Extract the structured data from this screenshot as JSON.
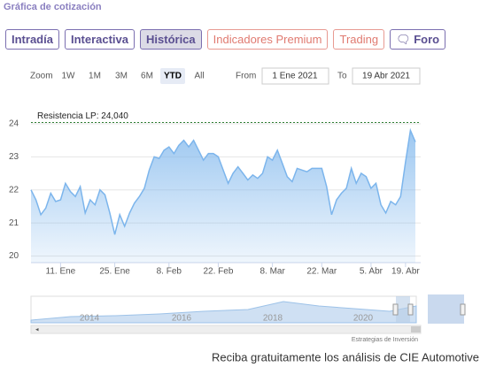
{
  "header": {
    "title": "Gráfica de cotización"
  },
  "tabs": [
    "Intradía",
    "Interactiva",
    "Histórica",
    "Indicadores Premium",
    "Trading",
    "Foro"
  ],
  "range_selector": {
    "label": "Zoom",
    "buttons": [
      "1W",
      "1M",
      "3M",
      "6M",
      "YTD",
      "All"
    ],
    "from_label": "From",
    "from": "1 Ene 2021",
    "to_label": "To",
    "to": "19 Abr 2021"
  },
  "navigator": {
    "labels": [
      "2014",
      "2016",
      "2018",
      "2020"
    ]
  },
  "credits": "Estrategias de Inversión",
  "footer": "Reciba gratuitamente los análisis de CIE Automotive",
  "chart_data": {
    "type": "area",
    "color": "#7cb5ec",
    "categories": [
      null,
      null,
      null,
      null,
      null,
      null,
      "11. Ene",
      null,
      null,
      null,
      null,
      null,
      null,
      null,
      null,
      null,
      null,
      "25. Ene",
      null,
      null,
      null,
      null,
      null,
      null,
      null,
      null,
      null,
      null,
      "8. Feb",
      null,
      null,
      null,
      null,
      null,
      null,
      null,
      null,
      null,
      "22. Feb",
      null,
      null,
      null,
      null,
      null,
      null,
      null,
      null,
      null,
      null,
      "8. Mar",
      null,
      null,
      null,
      null,
      null,
      null,
      null,
      null,
      null,
      "22. Mar",
      null,
      null,
      null,
      null,
      null,
      null,
      null,
      null,
      null,
      "5. Abr",
      null,
      null,
      null,
      null,
      null,
      null,
      "19. Abr",
      null,
      null
    ],
    "values": [
      22.0,
      21.7,
      21.25,
      21.45,
      21.9,
      21.65,
      21.7,
      22.2,
      21.95,
      21.8,
      22.1,
      21.3,
      21.7,
      21.55,
      22.0,
      21.85,
      21.3,
      20.65,
      21.25,
      20.9,
      21.3,
      21.6,
      21.8,
      22.05,
      22.6,
      23.0,
      22.95,
      23.2,
      23.3,
      23.1,
      23.35,
      23.5,
      23.3,
      23.5,
      23.2,
      22.9,
      23.1,
      23.1,
      23.0,
      22.6,
      22.2,
      22.5,
      22.7,
      22.5,
      22.3,
      22.45,
      22.35,
      22.5,
      23.0,
      22.9,
      23.2,
      22.8,
      22.4,
      22.25,
      22.65,
      22.6,
      22.55,
      22.65,
      22.65,
      22.65,
      22.1,
      21.25,
      21.7,
      21.9,
      22.05,
      22.65,
      22.2,
      22.5,
      22.4,
      22.05,
      22.2,
      21.55,
      21.3,
      21.65,
      21.55,
      21.8,
      22.85,
      23.8,
      23.45
    ],
    "ylim": [
      19.8,
      24.4
    ],
    "yticks": [
      20,
      21,
      22,
      23,
      24
    ],
    "grid": true,
    "annotation": {
      "label": "Resistencia LP: 24,040",
      "value": 24.04,
      "color": "#2e7d32"
    }
  }
}
